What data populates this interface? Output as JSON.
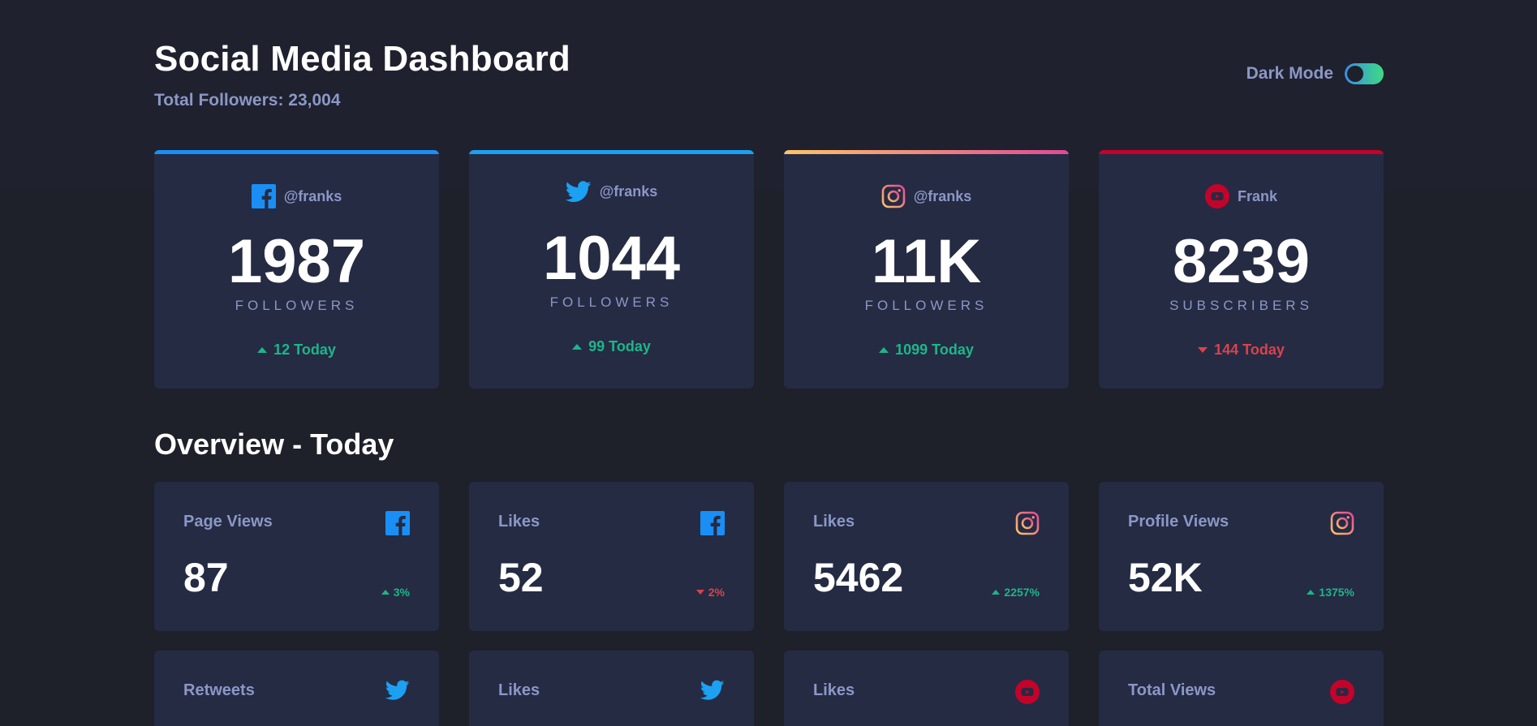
{
  "header": {
    "title": "Social Media Dashboard",
    "total_followers": "Total Followers: 23,004",
    "dark_mode_label": "Dark Mode"
  },
  "colors": {
    "background": "#1e202a",
    "card": "#252b43",
    "muted_text": "#8b97c6",
    "up": "#1eb589",
    "down": "#dc414c",
    "facebook": "#198ff5",
    "twitter": "#1ca0f2",
    "youtube": "#c4032a"
  },
  "follower_cards": [
    {
      "network": "facebook",
      "icon": "facebook-icon",
      "handle": "@franks",
      "count": "1987",
      "label": "FOLLOWERS",
      "change": "12 Today",
      "trend": "up"
    },
    {
      "network": "twitter",
      "icon": "twitter-icon",
      "handle": "@franks",
      "count": "1044",
      "label": "FOLLOWERS",
      "change": "99 Today",
      "trend": "up"
    },
    {
      "network": "instagram",
      "icon": "instagram-icon",
      "handle": "@franks",
      "count": "11K",
      "label": "FOLLOWERS",
      "change": "1099 Today",
      "trend": "up"
    },
    {
      "network": "youtube",
      "icon": "youtube-icon",
      "handle": "Frank",
      "count": "8239",
      "label": "SUBSCRIBERS",
      "change": "144 Today",
      "trend": "down"
    }
  ],
  "overview": {
    "title": "Overview - Today",
    "items": [
      {
        "label": "Page Views",
        "icon": "facebook-icon",
        "value": "87",
        "change": "3%",
        "trend": "up"
      },
      {
        "label": "Likes",
        "icon": "facebook-icon",
        "value": "52",
        "change": "2%",
        "trend": "down"
      },
      {
        "label": "Likes",
        "icon": "instagram-icon",
        "value": "5462",
        "change": "2257%",
        "trend": "up"
      },
      {
        "label": "Profile Views",
        "icon": "instagram-icon",
        "value": "52K",
        "change": "1375%",
        "trend": "up"
      },
      {
        "label": "Retweets",
        "icon": "twitter-icon"
      },
      {
        "label": "Likes",
        "icon": "twitter-icon"
      },
      {
        "label": "Likes",
        "icon": "youtube-icon"
      },
      {
        "label": "Total Views",
        "icon": "youtube-icon"
      }
    ]
  }
}
